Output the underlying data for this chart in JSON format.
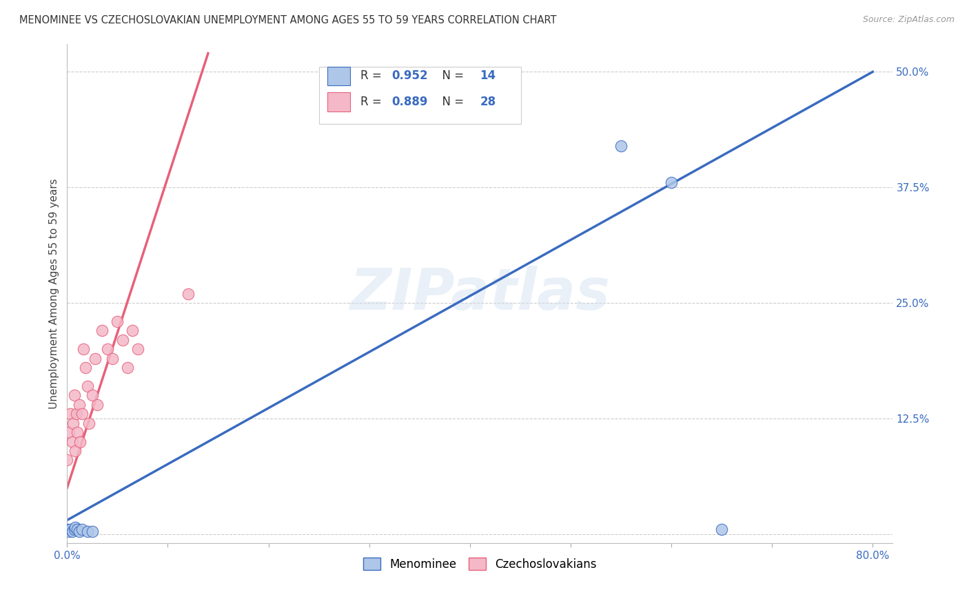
{
  "title": "MENOMINEE VS CZECHOSLOVAKIAN UNEMPLOYMENT AMONG AGES 55 TO 59 YEARS CORRELATION CHART",
  "source": "Source: ZipAtlas.com",
  "ylabel": "Unemployment Among Ages 55 to 59 years",
  "xlim": [
    0.0,
    0.82
  ],
  "ylim": [
    -0.01,
    0.53
  ],
  "xticks": [
    0.0,
    0.1,
    0.2,
    0.3,
    0.4,
    0.5,
    0.6,
    0.7,
    0.8
  ],
  "xticklabels": [
    "0.0%",
    "",
    "",
    "",
    "",
    "",
    "",
    "",
    "80.0%"
  ],
  "yticks": [
    0.0,
    0.125,
    0.25,
    0.375,
    0.5
  ],
  "yticklabels": [
    "",
    "12.5%",
    "25.0%",
    "37.5%",
    "50.0%"
  ],
  "watermark": "ZIPatlas",
  "menominee_color": "#aec6e8",
  "czechoslovakian_color": "#f4b8c8",
  "menominee_line_color": "#3a6bbf",
  "czechoslovakian_line_color": "#e8607a",
  "legend_color": "#3a6bbf",
  "R_menominee": 0.952,
  "N_menominee": 14,
  "R_czechoslovakian": 0.889,
  "N_czechoslovakian": 28,
  "menominee_x": [
    0.0,
    0.002,
    0.003,
    0.005,
    0.007,
    0.008,
    0.01,
    0.012,
    0.015,
    0.02,
    0.025,
    0.55,
    0.6,
    0.65
  ],
  "menominee_y": [
    0.005,
    0.003,
    0.005,
    0.003,
    0.005,
    0.007,
    0.005,
    0.003,
    0.005,
    0.003,
    0.003,
    0.42,
    0.38,
    0.005
  ],
  "czechoslovakian_x": [
    0.0,
    0.002,
    0.003,
    0.005,
    0.006,
    0.007,
    0.008,
    0.009,
    0.01,
    0.012,
    0.013,
    0.015,
    0.016,
    0.018,
    0.02,
    0.022,
    0.025,
    0.028,
    0.03,
    0.035,
    0.04,
    0.045,
    0.05,
    0.055,
    0.06,
    0.065,
    0.07,
    0.12
  ],
  "czechoslovakian_y": [
    0.08,
    0.11,
    0.13,
    0.1,
    0.12,
    0.15,
    0.09,
    0.13,
    0.11,
    0.14,
    0.1,
    0.13,
    0.2,
    0.18,
    0.16,
    0.12,
    0.15,
    0.19,
    0.14,
    0.22,
    0.2,
    0.19,
    0.23,
    0.21,
    0.18,
    0.22,
    0.2,
    0.26
  ],
  "background_color": "#ffffff",
  "grid_color": "#cccccc",
  "title_fontsize": 10.5,
  "ylabel_fontsize": 11,
  "tick_fontsize": 11
}
